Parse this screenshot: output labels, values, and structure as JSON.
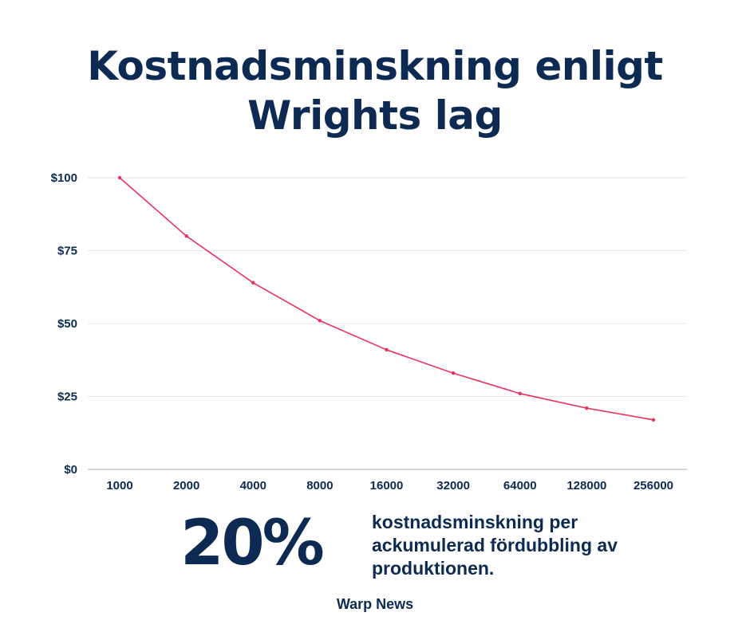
{
  "chart_data": {
    "type": "line",
    "title": [
      "Kostnadsminskning enligt",
      "Wrights lag"
    ],
    "categories": [
      "1000",
      "2000",
      "4000",
      "8000",
      "16000",
      "32000",
      "64000",
      "128000",
      "256000"
    ],
    "series": [
      {
        "values": [
          100,
          80,
          64,
          51,
          41,
          33,
          26,
          21,
          17
        ]
      }
    ],
    "ylim": [
      0,
      100
    ],
    "yticks": [
      0,
      25,
      50,
      75,
      100
    ],
    "ytick_labels": [
      "$0",
      "$25",
      "$50",
      "$75",
      "$100"
    ],
    "grid": true,
    "line_color": "#e8325e"
  },
  "stat": {
    "value": "20%",
    "description": [
      "kostnadsminskning per",
      "ackumulerad fördubbling av",
      "produktionen."
    ]
  },
  "source": "Warp News",
  "colors": {
    "text": "#0d2b52",
    "grid": "#e6e6e6",
    "axis": "#b0b0b0"
  }
}
